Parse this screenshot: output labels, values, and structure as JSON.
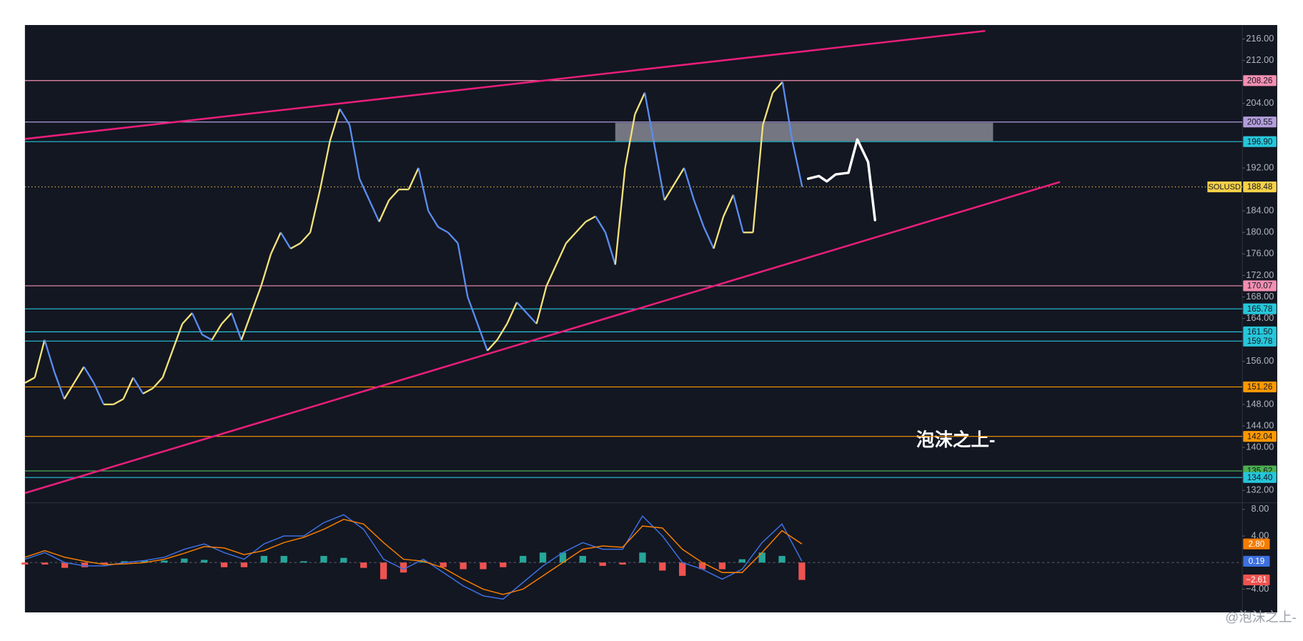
{
  "chart_data": [
    {
      "type": "price",
      "symbol": "SOLUSD",
      "series": [
        {
          "color": "#5b8def",
          "up_color": "#f5e27a",
          "values": [
            152,
            153,
            160,
            154,
            149,
            152,
            155,
            152,
            148,
            148,
            149,
            153,
            150,
            151,
            153,
            158,
            163,
            165,
            161,
            160,
            163,
            165,
            160,
            165,
            170,
            176,
            180,
            177,
            178,
            180,
            188,
            197,
            203,
            200,
            190,
            186,
            182,
            186,
            188,
            188,
            192,
            184,
            181,
            180,
            178,
            168,
            163,
            158,
            160,
            163,
            167,
            165,
            163,
            170,
            174,
            178,
            180,
            182,
            183,
            180,
            174,
            192,
            202,
            206,
            196,
            186,
            189,
            192,
            186,
            181,
            177,
            183,
            187,
            180,
            180,
            200,
            206,
            208,
            197,
            188.48
          ]
        }
      ],
      "ylim": [
        129.7,
        218.6
      ],
      "yticks": [
        {
          "value": 216,
          "label": "216.00"
        },
        {
          "value": 212,
          "label": "212.00"
        },
        {
          "value": 204,
          "label": "204.00"
        },
        {
          "value": 192,
          "label": "192.00"
        },
        {
          "value": 184,
          "label": "184.00"
        },
        {
          "value": 180,
          "label": "180.00"
        },
        {
          "value": 176,
          "label": "176.00"
        },
        {
          "value": 172,
          "label": "172.00"
        },
        {
          "value": 168,
          "label": "168.00"
        },
        {
          "value": 164,
          "label": "164.00"
        },
        {
          "value": 156,
          "label": "156.00"
        },
        {
          "value": 148,
          "label": "148.00"
        },
        {
          "value": 144,
          "label": "144.00"
        },
        {
          "value": 140,
          "label": "140.00"
        },
        {
          "value": 132,
          "label": "132.00"
        }
      ],
      "levels": [
        {
          "value": 208.26,
          "color": "#f48fb1"
        },
        {
          "value": 200.55,
          "color": "#b39ddb"
        },
        {
          "value": 196.9,
          "label": "196.90",
          "color": "#26c6da"
        },
        {
          "value": 188.48,
          "color": "#f7d047",
          "dashed": true
        },
        {
          "value": 170.07,
          "color": "#f48fb1"
        },
        {
          "value": 165.78,
          "color": "#26c6da"
        },
        {
          "value": 161.5,
          "label": "161.50",
          "color": "#26c6da"
        },
        {
          "value": 159.78,
          "color": "#26c6da"
        },
        {
          "value": 151.26,
          "color": "#ff9800"
        },
        {
          "value": 142.04,
          "color": "#ff9800"
        },
        {
          "value": 135.62,
          "color": "#4caf50"
        },
        {
          "value": 134.4,
          "label": "134.40",
          "color": "#26c6da"
        }
      ],
      "trendlines": [
        {
          "color": "#e91e7a",
          "x": [
            0,
            97.6
          ],
          "values": [
            197.4,
            217.5
          ]
        },
        {
          "color": "#e91e7a",
          "x": [
            0,
            105.2
          ],
          "values": [
            131.5,
            189.4
          ]
        }
      ],
      "zone": {
        "color": "#9598a1",
        "x": [
          60,
          98.4
        ],
        "values": [
          200.4,
          197.0
        ]
      },
      "projection": {
        "color": "#ffffff",
        "x": [
          79.6,
          80.7,
          81.5,
          82.4,
          83.7,
          84.6,
          85.7,
          86.4
        ],
        "values": [
          190.0,
          190.5,
          189.5,
          190.8,
          191.1,
          197.3,
          193.1,
          182.3
        ]
      },
      "watermark": "泡沫之上-",
      "credit": "@泡沫之上-"
    },
    {
      "type": "macd",
      "ylim": [
        -7.5,
        9
      ],
      "yticks": [
        {
          "value": 8,
          "label": "8.00"
        },
        {
          "value": 4,
          "label": "4.00"
        },
        {
          "value": -4,
          "label": "−4.00"
        }
      ],
      "series": [
        {
          "kind": "histogram",
          "color": "#26a69a",
          "down_color": "#ef5350",
          "last_label": "−2.61",
          "values": [
            -0.3,
            -0.3,
            -0.8,
            -0.7,
            -0.2,
            0.2,
            0.3,
            0.3,
            0.6,
            0.4,
            -0.7,
            -0.7,
            1,
            1,
            0.2,
            1,
            0.7,
            -0.8,
            -2.5,
            -1.5,
            0.3,
            -0.7,
            -1,
            -1,
            -0.7,
            1,
            1.5,
            1.5,
            1,
            -0.5,
            -0.3,
            1.5,
            -1.2,
            -2,
            -1,
            -1,
            0.5,
            1.5,
            1,
            -2.61
          ]
        },
        {
          "kind": "line",
          "color": "#3d6fe0",
          "last_label": "0.19",
          "values": [
            0.5,
            1.5,
            0,
            -0.5,
            -0.5,
            0,
            0.3,
            0.8,
            2,
            2.8,
            1.5,
            0.5,
            2.8,
            4,
            4,
            6,
            7.2,
            5,
            0.5,
            -1,
            0.5,
            -1.5,
            -3.5,
            -5,
            -5.5,
            -3,
            -0.5,
            1.5,
            3,
            2,
            2,
            7,
            4,
            0,
            -1,
            -2.5,
            -1,
            3,
            5.8,
            0.19
          ]
        },
        {
          "kind": "line",
          "color": "#f57c00",
          "last_label": "2.80",
          "values": [
            0.8,
            1.8,
            0.8,
            0.2,
            -0.3,
            -0.2,
            0,
            0.5,
            1.4,
            2.4,
            2.2,
            1.2,
            1.8,
            3,
            3.8,
            5,
            6.5,
            5.8,
            3,
            0.5,
            0.2,
            -0.8,
            -2.5,
            -4,
            -4.8,
            -4,
            -2,
            0,
            2,
            2.5,
            2.3,
            5.5,
            5.2,
            2,
            0,
            -1.5,
            -1.5,
            1.5,
            4.8,
            2.8
          ]
        }
      ]
    }
  ]
}
